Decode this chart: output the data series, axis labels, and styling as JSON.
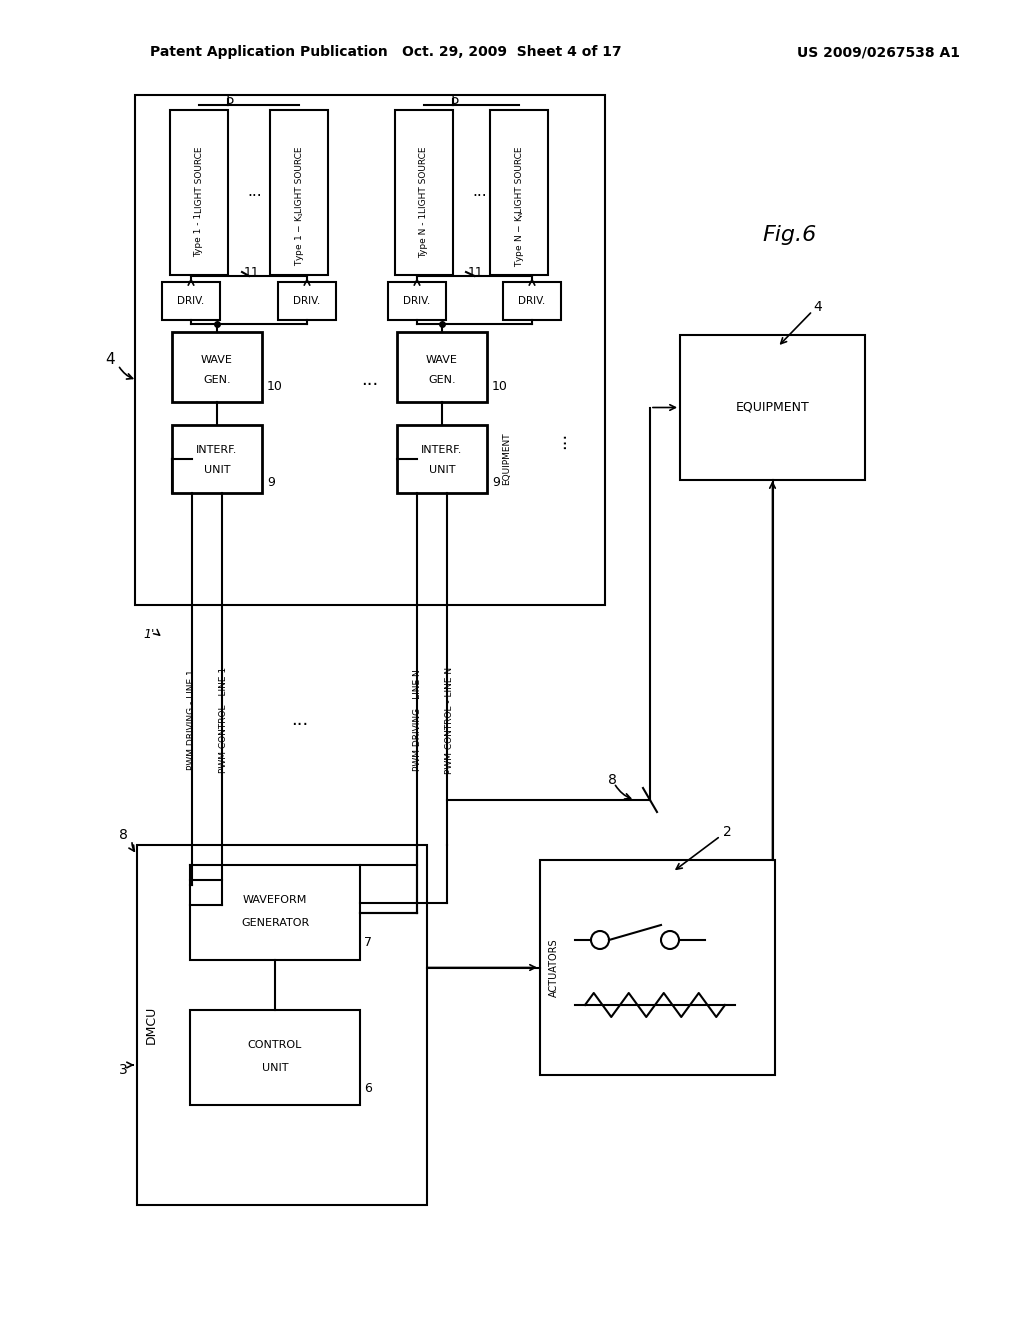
{
  "bg_color": "#ffffff",
  "title_left": "Patent Application Publication",
  "title_center": "Oct. 29, 2009  Sheet 4 of 17",
  "title_right": "US 2009/0267538 A1",
  "fig_label": "Fig.6"
}
